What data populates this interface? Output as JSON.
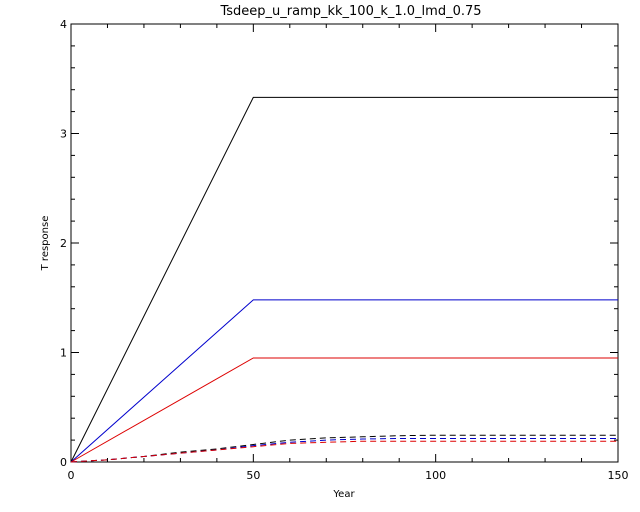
{
  "chart_data": {
    "type": "line",
    "title": "Tsdeep_u_ramp_kk_100_k_1.0_lmd_0.75",
    "xlabel": "Year",
    "ylabel": "T response",
    "xlim": [
      0,
      150
    ],
    "ylim": [
      0,
      4
    ],
    "xticks": [
      0,
      50,
      100,
      150
    ],
    "yticks": [
      0,
      1,
      2,
      3,
      4
    ],
    "xtick_labels": [
      "0",
      "50",
      "100",
      "150"
    ],
    "ytick_labels": [
      "0",
      "1",
      "2",
      "3",
      "4"
    ],
    "grid": false,
    "series": [
      {
        "color": "#000000",
        "dash": "solid",
        "x": [
          0,
          50,
          150
        ],
        "y": [
          0,
          3.33,
          3.33
        ]
      },
      {
        "color": "#0000cc",
        "dash": "solid",
        "x": [
          0,
          50,
          150
        ],
        "y": [
          0,
          1.48,
          1.48
        ]
      },
      {
        "color": "#dd0000",
        "dash": "solid",
        "x": [
          0,
          50,
          150
        ],
        "y": [
          0,
          0.95,
          0.95
        ]
      },
      {
        "color": "#000000",
        "dash": "dashed",
        "x": [
          0,
          10,
          20,
          30,
          40,
          50,
          60,
          70,
          80,
          90,
          100,
          110,
          120,
          130,
          140,
          150
        ],
        "y": [
          0,
          0.02,
          0.05,
          0.09,
          0.12,
          0.16,
          0.2,
          0.22,
          0.23,
          0.24,
          0.245,
          0.245,
          0.245,
          0.245,
          0.245,
          0.245
        ]
      },
      {
        "color": "#0000cc",
        "dash": "dashed",
        "x": [
          0,
          10,
          20,
          30,
          40,
          50,
          60,
          70,
          80,
          90,
          100,
          110,
          120,
          130,
          140,
          150
        ],
        "y": [
          0,
          0.02,
          0.05,
          0.08,
          0.11,
          0.15,
          0.18,
          0.2,
          0.21,
          0.215,
          0.215,
          0.215,
          0.215,
          0.215,
          0.215,
          0.215
        ]
      },
      {
        "color": "#dd0000",
        "dash": "dashed",
        "x": [
          0,
          10,
          20,
          30,
          40,
          50,
          60,
          70,
          80,
          90,
          100,
          110,
          120,
          130,
          140,
          150
        ],
        "y": [
          0,
          0.02,
          0.05,
          0.08,
          0.11,
          0.14,
          0.17,
          0.18,
          0.19,
          0.19,
          0.19,
          0.19,
          0.19,
          0.19,
          0.19,
          0.19
        ]
      }
    ]
  }
}
